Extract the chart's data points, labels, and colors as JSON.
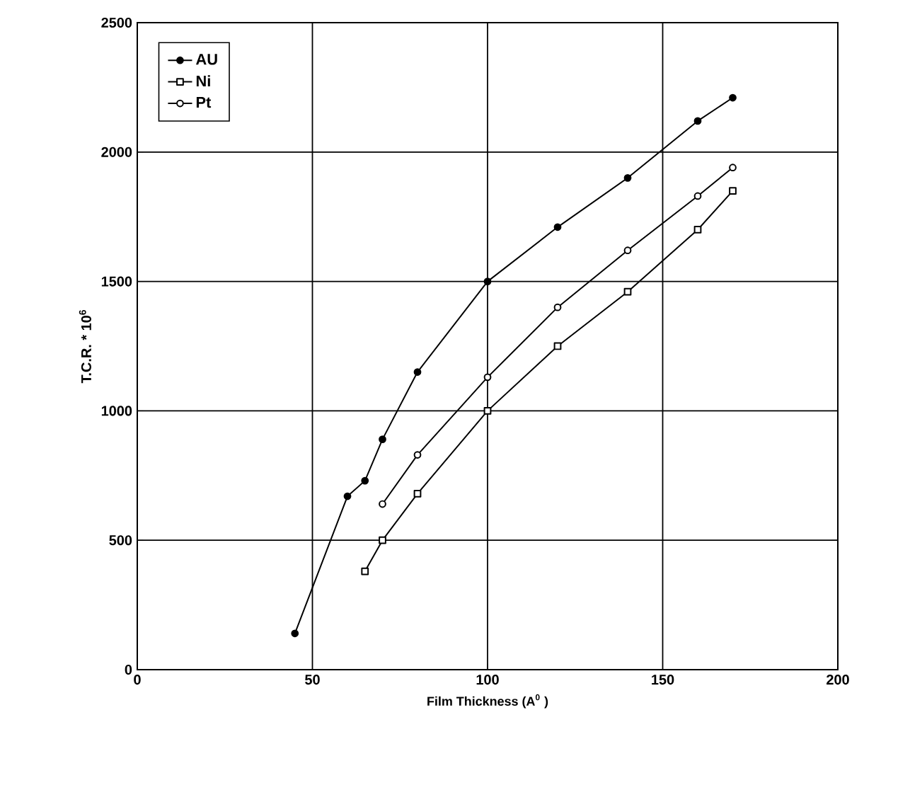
{
  "chart_data": {
    "type": "line",
    "xlabel": "Film Thickness (A$^{0}$ )",
    "ylabel": "T.C.R. * 10$^{6}$",
    "xlim": [
      0,
      200
    ],
    "ylim": [
      0,
      2500
    ],
    "xticks": [
      0,
      50,
      100,
      150,
      200
    ],
    "yticks": [
      0,
      500,
      1000,
      1500,
      2000,
      2500
    ],
    "grid": true,
    "legend": "top left",
    "line_style": "solid",
    "series": [
      {
        "name": "AU",
        "color": "#000000",
        "marker": "circle",
        "x": [
          45,
          60,
          65,
          70,
          80,
          100,
          120,
          140,
          160,
          170
        ],
        "values": [
          140,
          670,
          730,
          890,
          1150,
          1500,
          1710,
          1900,
          2120,
          2210
        ]
      },
      {
        "name": "Ni",
        "color": "#000000",
        "marker": "square",
        "x": [
          65,
          70,
          80,
          100,
          120,
          140,
          160,
          170
        ],
        "values": [
          380,
          500,
          680,
          1000,
          1250,
          1460,
          1700,
          1850
        ]
      },
      {
        "name": "Pt",
        "color": "#000000",
        "marker": "circle",
        "x": [
          70,
          80,
          100,
          120,
          140,
          160,
          170
        ],
        "values": [
          640,
          830,
          1130,
          1400,
          1620,
          1830,
          1940
        ]
      }
    ]
  }
}
